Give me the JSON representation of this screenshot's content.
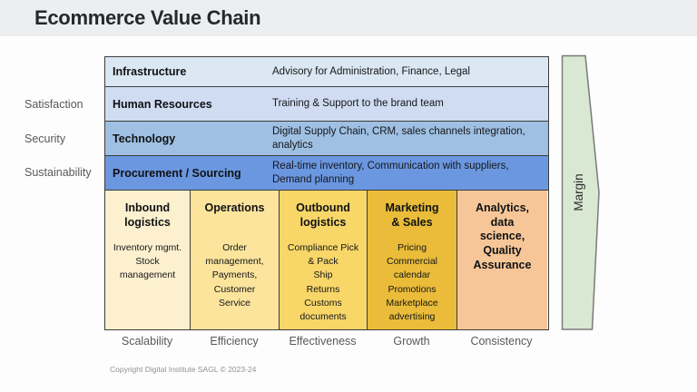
{
  "title": "Ecommerce Value Chain",
  "left_labels": [
    "Satisfaction",
    "Security",
    "Sustainability"
  ],
  "support_rows": [
    {
      "label": "Infrastructure",
      "desc": "Advisory for Administration, Finance, Legal",
      "bg": "#dbe7f3"
    },
    {
      "label": "Human Resources",
      "desc": "Training & Support to the brand team",
      "bg": "#cfdcf2"
    },
    {
      "label": "Technology",
      "desc": "Digital Supply Chain, CRM, sales channels integration, analytics",
      "bg": "#9fc0e3"
    },
    {
      "label": "Procurement / Sourcing",
      "desc": "Real-time inventory, Communication with suppliers, Demand planning",
      "bg": "#6b97e0"
    }
  ],
  "primary_columns": [
    {
      "header": "Inbound\nlogistics",
      "items": [
        "Inventory mgmt.",
        "Stock management"
      ],
      "bg": "#fdf0ce"
    },
    {
      "header": "Operations",
      "items": [
        "Order management, Payments, Customer Service"
      ],
      "bg": "#fce49c"
    },
    {
      "header": "Outbound\nlogistics",
      "items": [
        "Compliance Pick & Pack",
        "Ship",
        "Returns",
        "Customs documents"
      ],
      "bg": "#f8d668"
    },
    {
      "header": "Marketing\n& Sales",
      "items": [
        "Pricing",
        "Commercial calendar",
        "Promotions",
        "Marketplace advertising"
      ],
      "bg": "#eabc39"
    },
    {
      "header": "Analytics,\ndata\nscience,\nQuality\nAssurance",
      "items": [],
      "bg": "#f7c698"
    }
  ],
  "margin_arrow": {
    "label": "Margin",
    "fill": "#d9e8d2",
    "border": "#7a7a7a"
  },
  "bottom_labels": [
    "Scalability",
    "Efficiency",
    "Effectiveness",
    "Growth",
    "Consistency"
  ],
  "copyright": "Copyright Digital Institute SAGL © 2023-24"
}
